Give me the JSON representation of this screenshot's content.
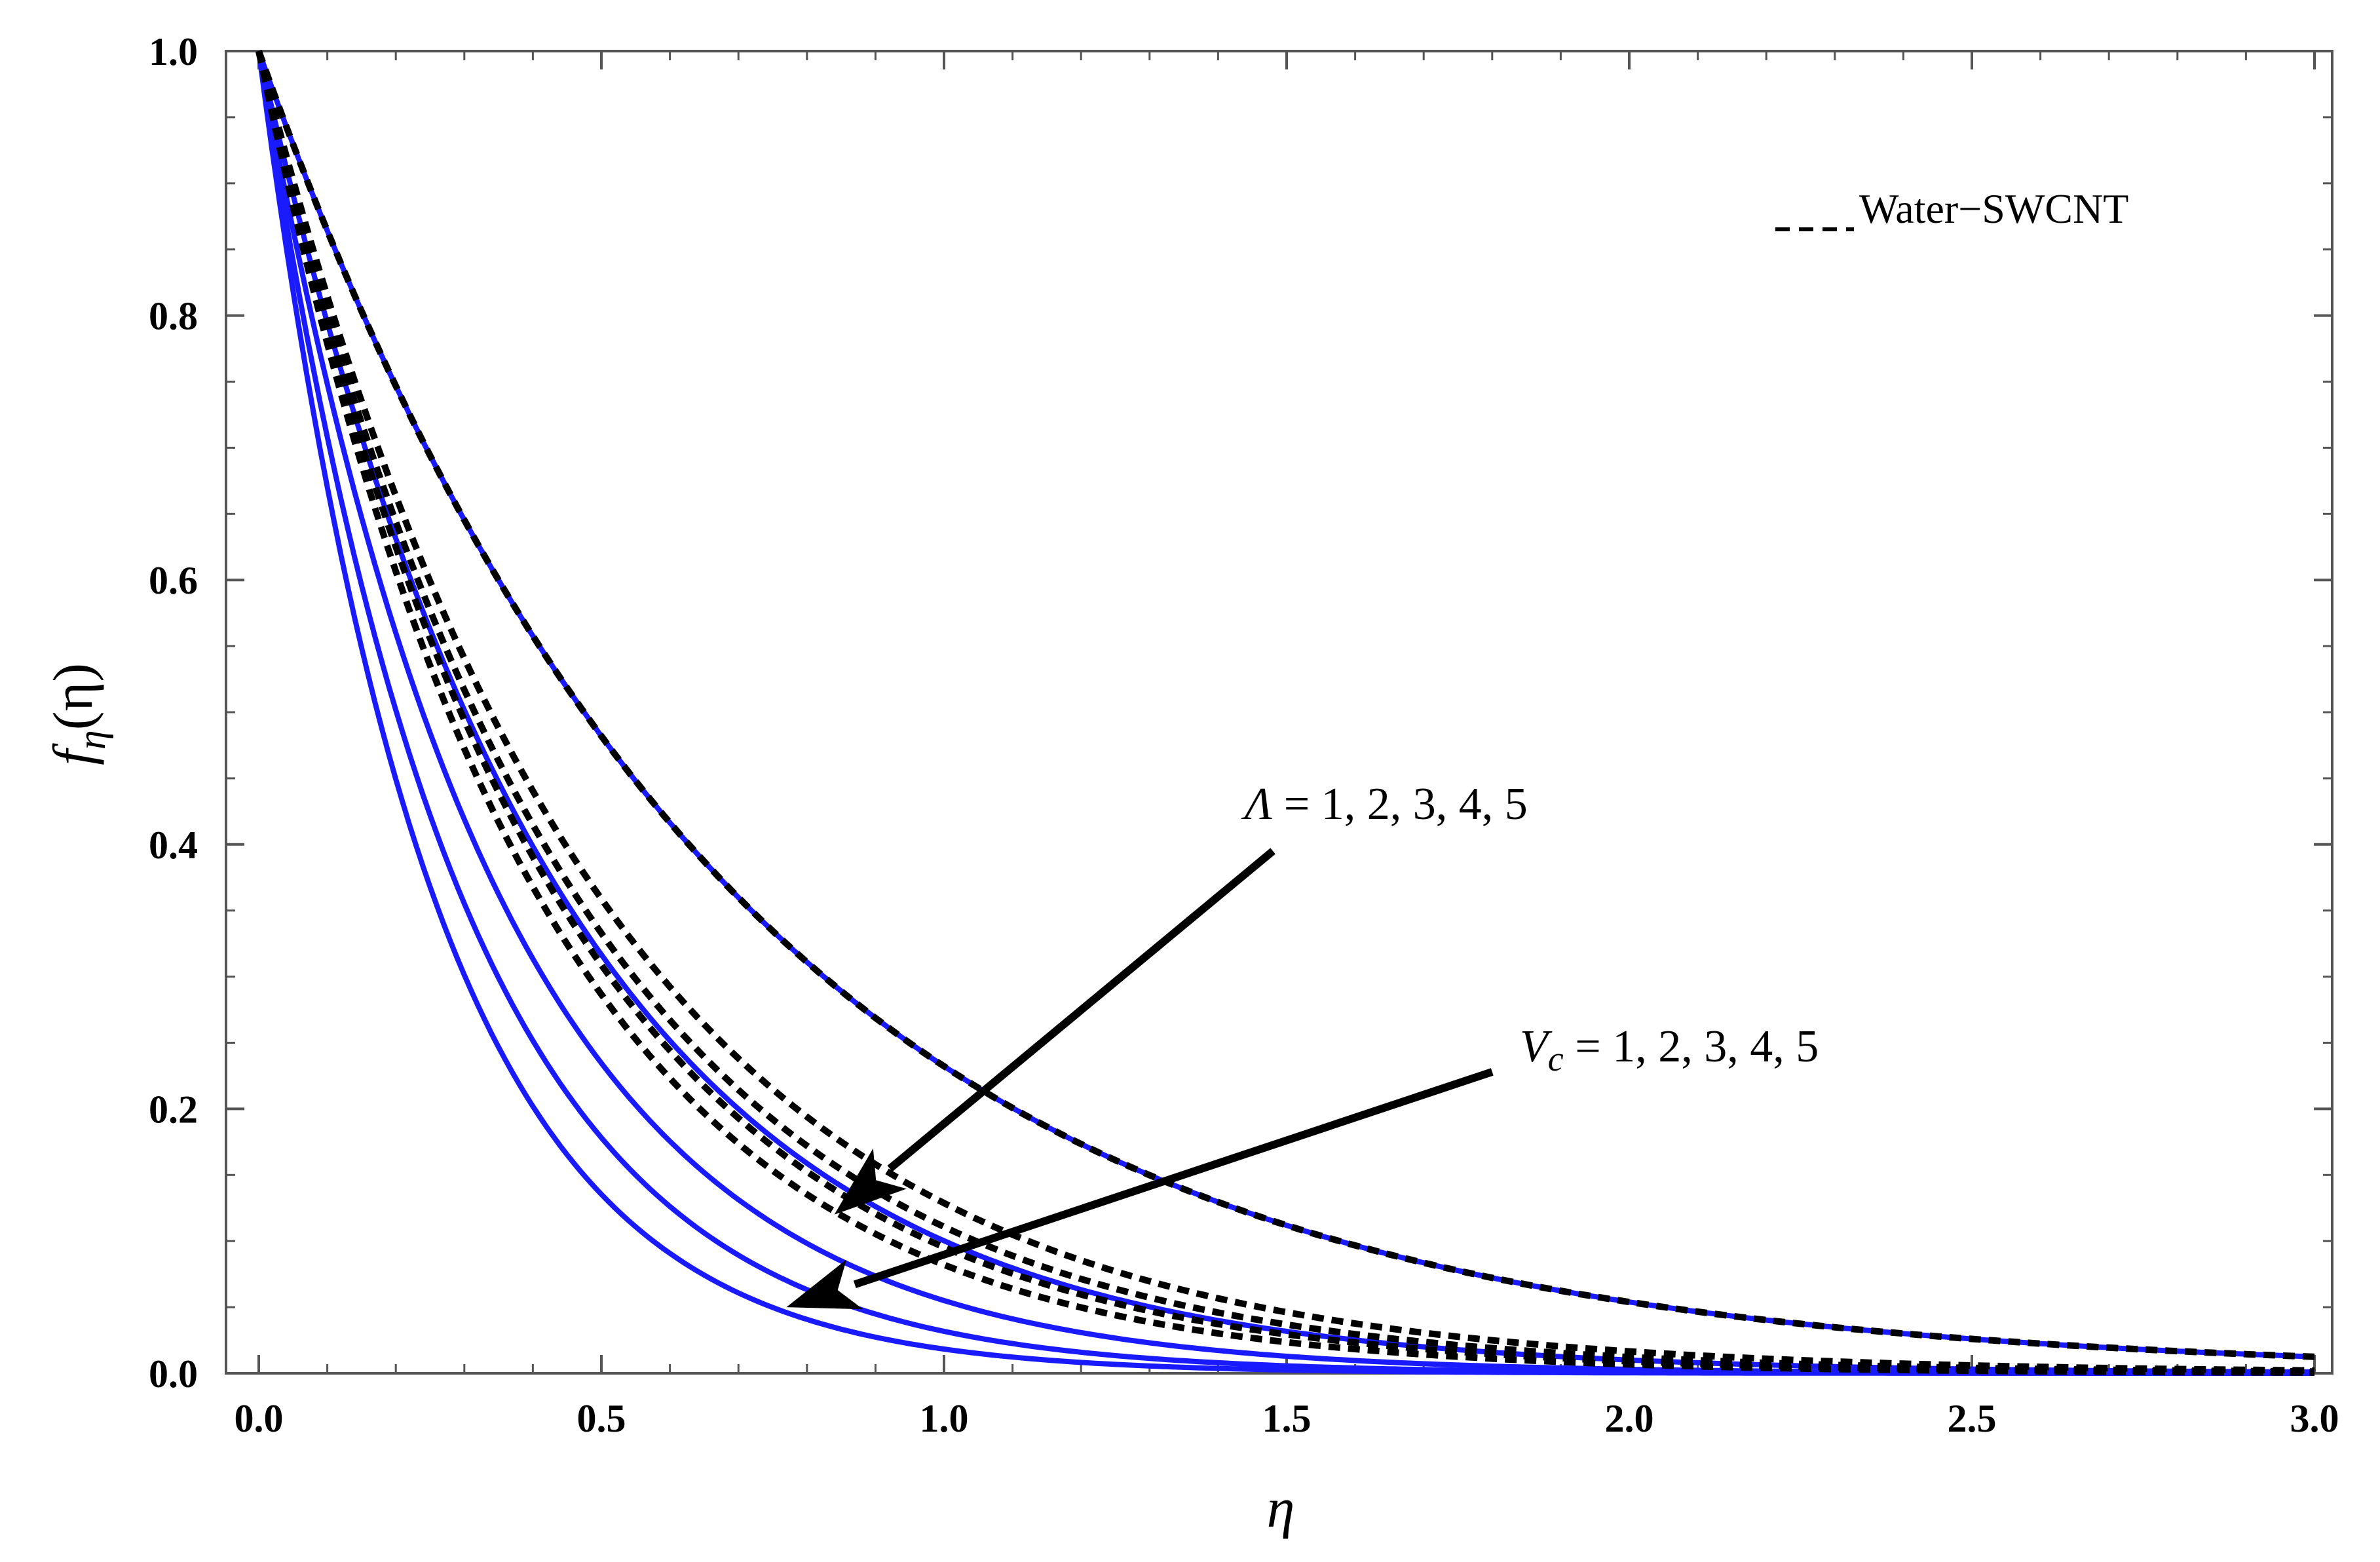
{
  "chart_data": {
    "type": "line",
    "title": "",
    "xlabel": "η",
    "ylabel_main": "f",
    "ylabel_sub": "η",
    "ylabel_paren": "(η)",
    "xlim": [
      0.0,
      3.0
    ],
    "ylim": [
      0.0,
      1.0
    ],
    "xticks": [
      "0.0",
      "0.5",
      "1.0",
      "1.5",
      "2.0",
      "2.5",
      "3.0"
    ],
    "yticks": [
      "0.0",
      "0.2",
      "0.4",
      "0.6",
      "0.8",
      "1.0"
    ],
    "legend": {
      "position": "top-right",
      "label": "Water−SWCNT",
      "marker": "_ _ _"
    },
    "series": [
      {
        "name": "solid, Λ=1",
        "style": "solid",
        "color": "#1a1aff",
        "decay": 1.46
      },
      {
        "name": "solid, Λ=2",
        "style": "solid",
        "color": "#1a1aff",
        "decay": 2.3
      },
      {
        "name": "solid, Λ=3",
        "style": "solid",
        "color": "#1a1aff",
        "decay": 2.9
      },
      {
        "name": "solid, Λ=4",
        "style": "solid",
        "color": "#1a1aff",
        "decay": 3.45
      },
      {
        "name": "solid, Λ=5",
        "style": "solid",
        "color": "#1a1aff",
        "decay": 4.0
      },
      {
        "name": "Water−SWCNT, Λ=1",
        "style": "dashed",
        "color": "#000000",
        "decay": 1.46
      },
      {
        "name": "Water−SWCNT, Λ=2",
        "style": "dashed",
        "color": "#000000",
        "decay": 2.05
      },
      {
        "name": "Water−SWCNT, Λ=3",
        "style": "dashed",
        "color": "#000000",
        "decay": 2.2
      },
      {
        "name": "Water−SWCNT, Λ=4",
        "style": "dashed",
        "color": "#000000",
        "decay": 2.35
      },
      {
        "name": "Water−SWCNT, Λ=5",
        "style": "dashed",
        "color": "#000000",
        "decay": 2.5
      }
    ],
    "annotations": [
      {
        "symbol": "Λ",
        "subscript": "",
        "text": " =  1,  2,  3,  4, 5",
        "label_at": [
          1.42,
          0.41
        ],
        "arrow_from": [
          1.48,
          0.395
        ],
        "arrow_to": [
          0.84,
          0.12
        ]
      },
      {
        "symbol": "V",
        "subscript": "c",
        "text": " = 1, 2,  3,  4, 5",
        "label_at": [
          1.82,
          0.225
        ],
        "arrow_from": [
          1.8,
          0.228
        ],
        "arrow_to": [
          0.77,
          0.05
        ]
      }
    ]
  }
}
